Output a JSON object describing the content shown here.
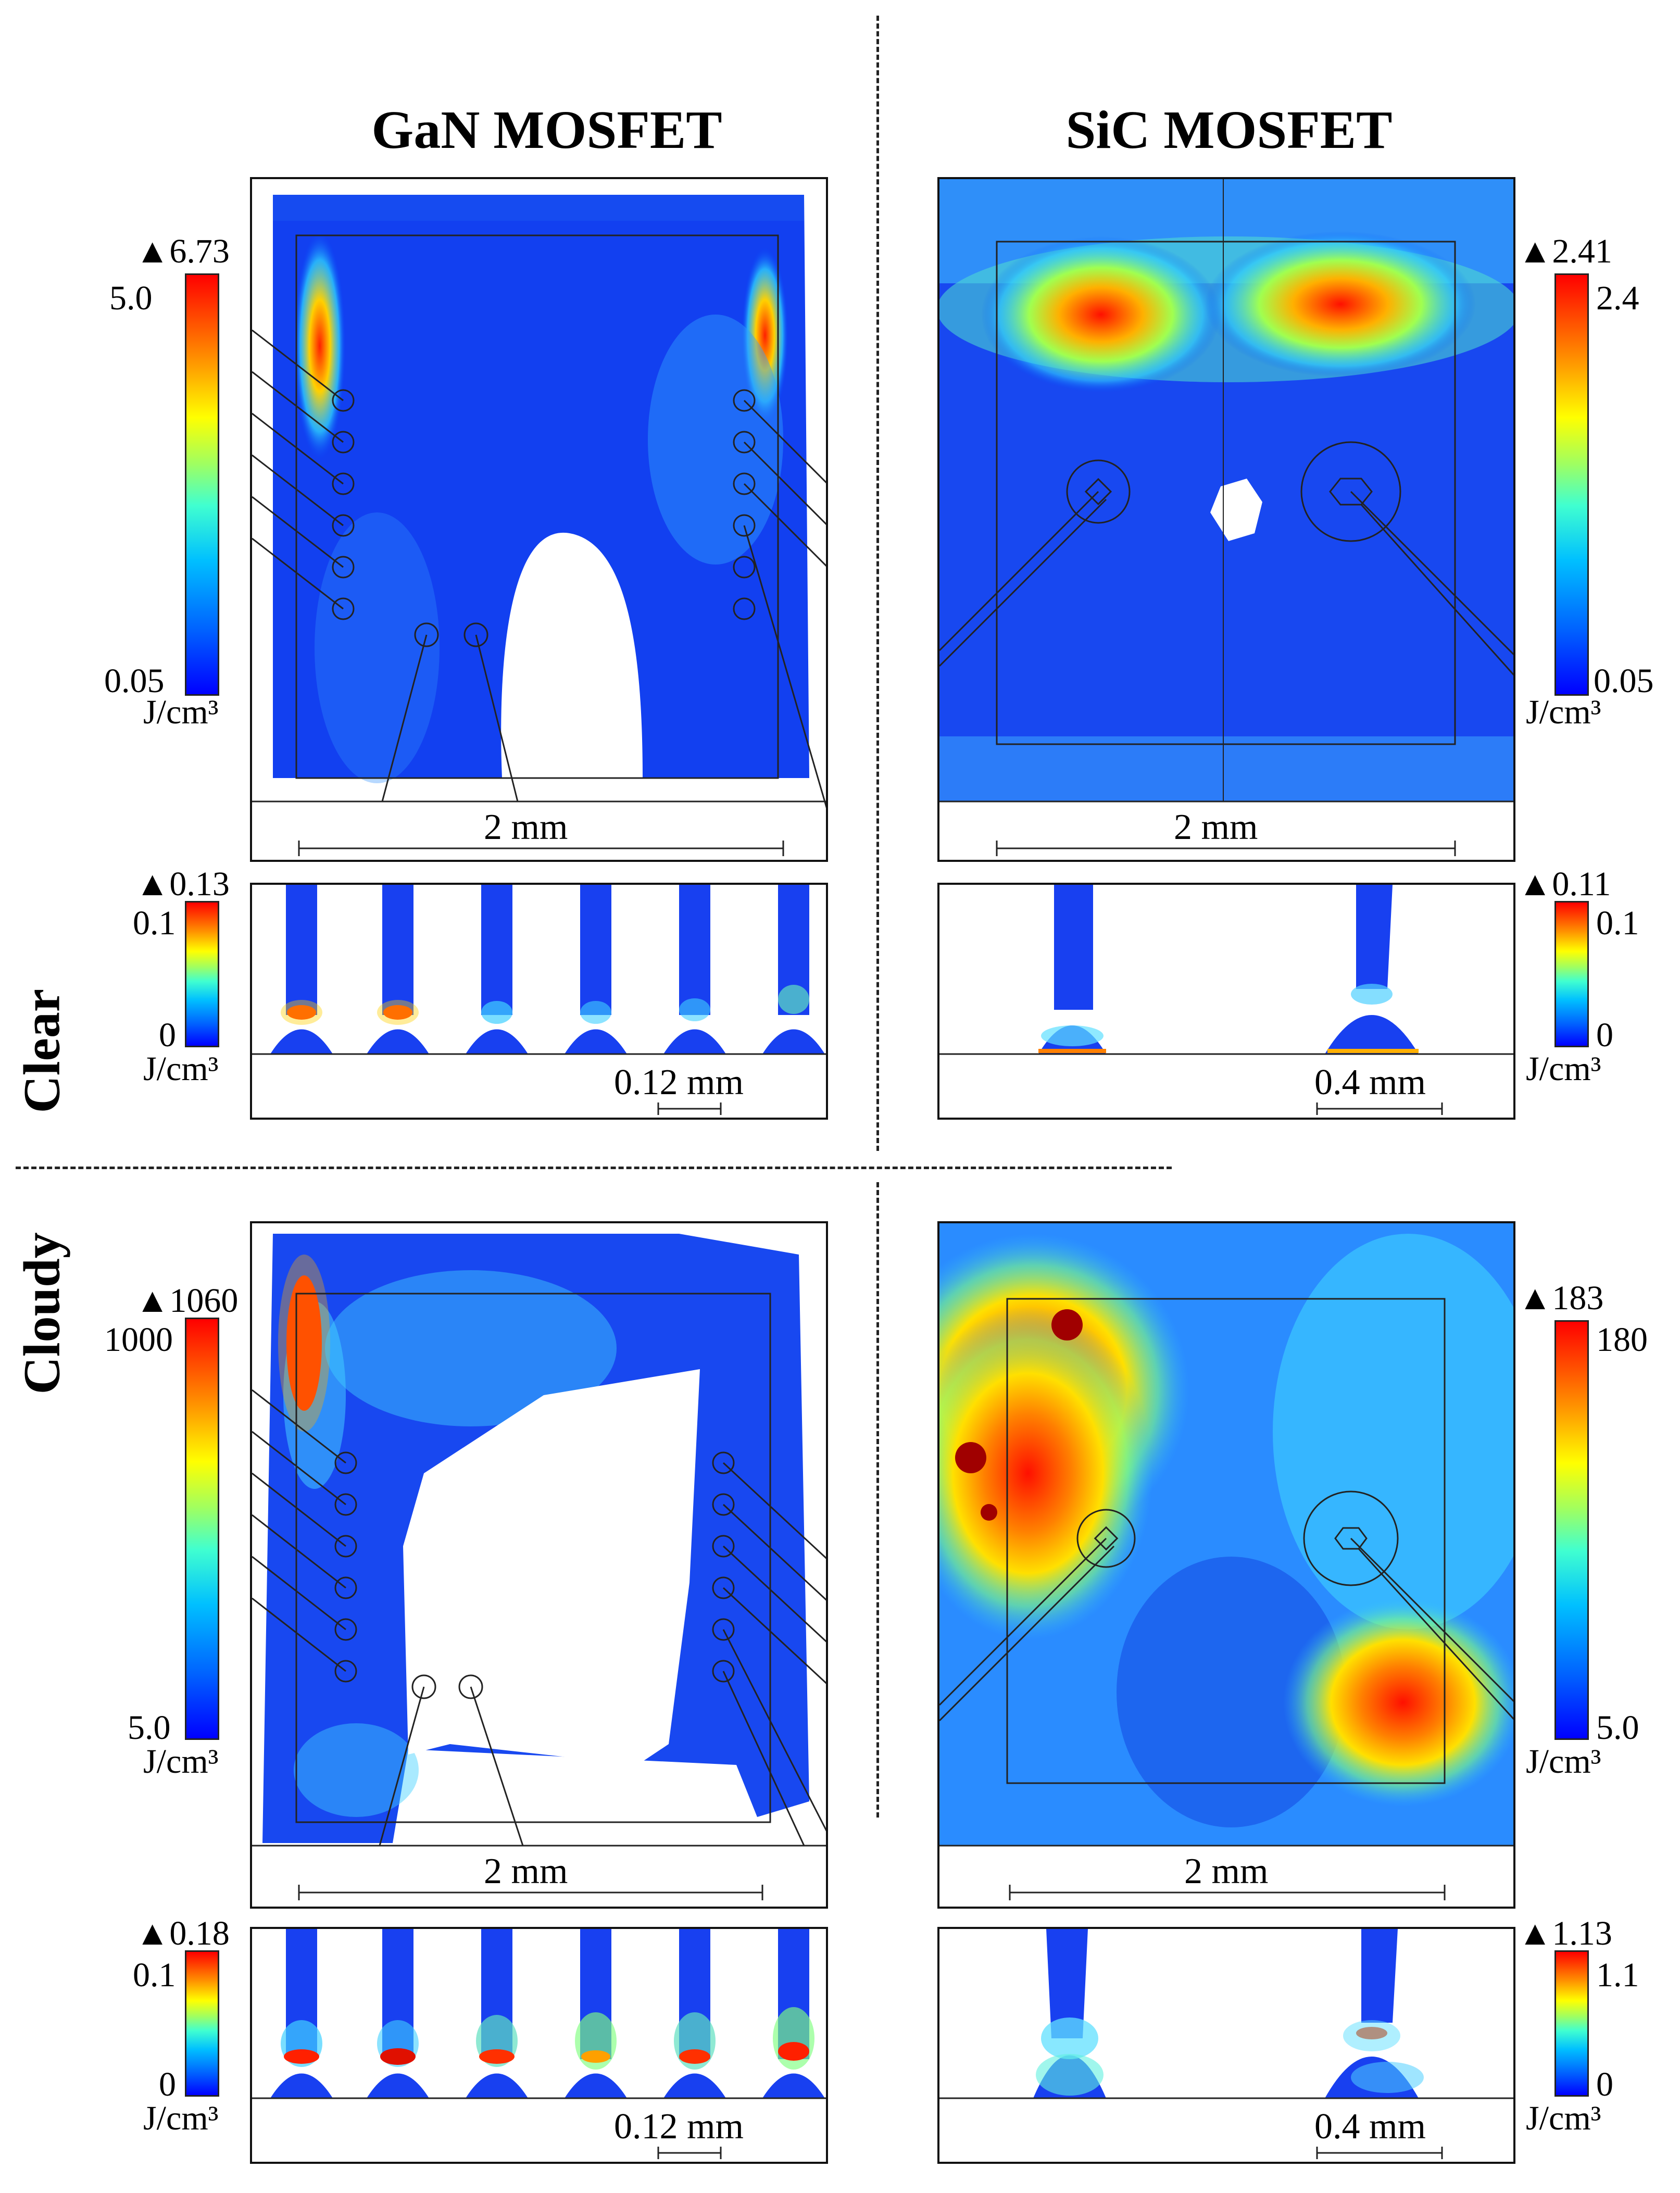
{
  "columns": {
    "gan_title": "GaN MOSFET",
    "sic_title": "SiC MOSFET"
  },
  "rows": {
    "clear_label": "Clear",
    "cloudy_label": "Cloudy"
  },
  "unit": "J/cm³",
  "panels": {
    "gan_clear_top": {
      "max": "▲6.73",
      "cb_top": "5.0",
      "cb_bottom": "0.05",
      "scale": "2 mm"
    },
    "sic_clear_top": {
      "max": "▲2.41",
      "cb_top": "2.4",
      "cb_bottom": "0.05",
      "scale": "2 mm"
    },
    "gan_clear_bottom": {
      "max": "▲0.13",
      "cb_top": "0.1",
      "cb_bottom": "0",
      "scale": "0.12 mm"
    },
    "sic_clear_bottom": {
      "max": "▲0.11",
      "cb_top": "0.1",
      "cb_bottom": "0",
      "scale": "0.4 mm"
    },
    "gan_cloudy_top": {
      "max": "▲1060",
      "cb_top": "1000",
      "cb_bottom": "5.0",
      "scale": "2 mm"
    },
    "sic_cloudy_top": {
      "max": "▲183",
      "cb_top": "180",
      "cb_bottom": "5.0",
      "scale": "2 mm"
    },
    "gan_cloudy_bottom": {
      "max": "▲0.18",
      "cb_top": "0.1",
      "cb_bottom": "0",
      "scale": "0.12 mm"
    },
    "sic_cloudy_bottom": {
      "max": "▲1.13",
      "cb_top": "1.1",
      "cb_bottom": "0",
      "scale": "0.4 mm"
    }
  },
  "colors": {
    "low": "#0000ff",
    "mid": "#00d0ff",
    "high": "#ff0000"
  }
}
